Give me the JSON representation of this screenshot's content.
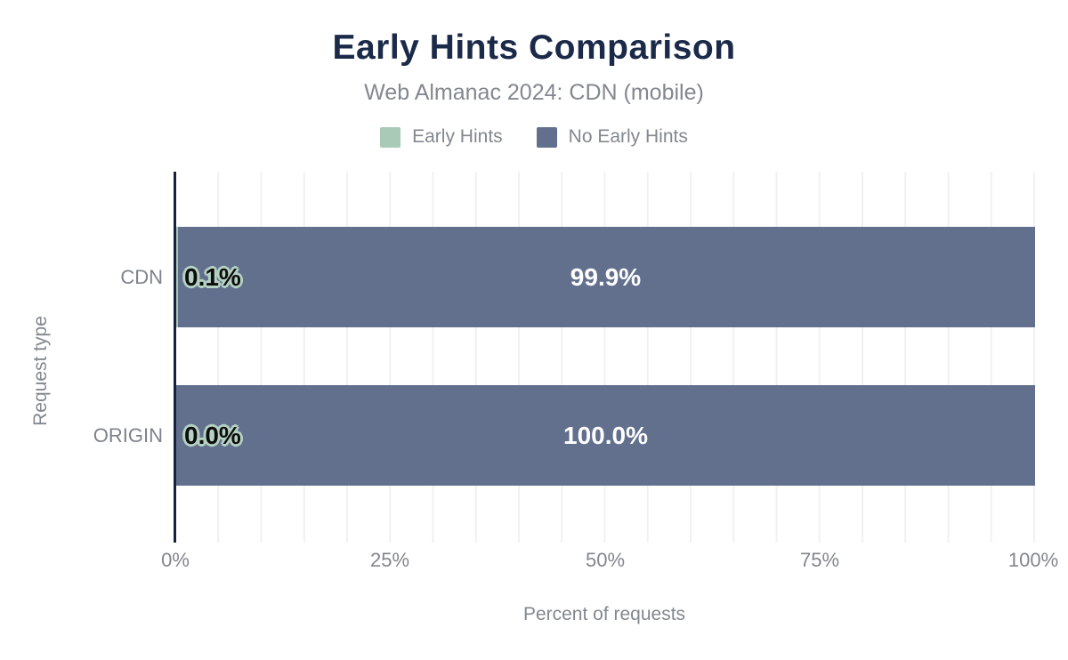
{
  "chart_data": {
    "type": "bar",
    "orientation": "horizontal",
    "stacked": true,
    "title": "Early Hints Comparison",
    "subtitle": "Web Almanac 2024: CDN (mobile)",
    "categories": [
      "CDN",
      "ORIGIN"
    ],
    "series": [
      {
        "name": "Early Hints",
        "color": "#a9cab6",
        "values": [
          0.1,
          0.0
        ]
      },
      {
        "name": "No Early Hints",
        "color": "#62708d",
        "values": [
          99.9,
          100.0
        ]
      }
    ],
    "value_labels": [
      [
        "0.1%",
        "99.9%"
      ],
      [
        "0.0%",
        "100.0%"
      ]
    ],
    "xlabel": "Percent of requests",
    "ylabel": "Request type",
    "xticks": [
      "0%",
      "25%",
      "50%",
      "75%",
      "100%"
    ],
    "xlim": [
      0,
      100
    ],
    "grid": {
      "vertical_step_percent": 5,
      "color": "#f0f1f4"
    },
    "legend_position": "top",
    "colors": {
      "title": "#1b2a49",
      "text": "#83888f",
      "axis": "#15233f",
      "value_label_outline": "#b4d1c2",
      "value_label_on_bar": "#ffffff"
    }
  }
}
